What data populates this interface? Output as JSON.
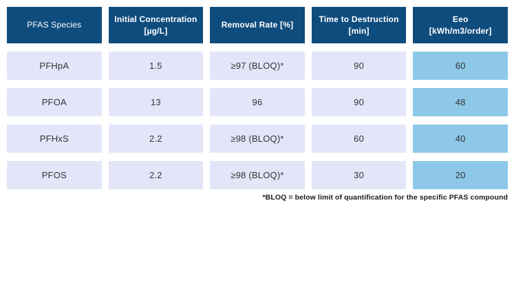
{
  "table": {
    "headers": [
      {
        "line1": "PFAS Species",
        "line2": ""
      },
      {
        "line1": "Initial Concentration",
        "line2": "[µg/L]"
      },
      {
        "line1": "Removal Rate [%]",
        "line2": ""
      },
      {
        "line1": "Time to Destruction",
        "line2": "[min]"
      },
      {
        "line1": "Eeo",
        "line2": "[kWh/m3/order]"
      }
    ],
    "rows": [
      {
        "species": "PFHpA",
        "initial_concentration": "1.5",
        "removal_rate": "≥97 (BLOQ)*",
        "time_to_destruction": "90",
        "eeo": "60"
      },
      {
        "species": "PFOA",
        "initial_concentration": "13",
        "removal_rate": "96",
        "time_to_destruction": "90",
        "eeo": "48"
      },
      {
        "species": "PFHxS",
        "initial_concentration": "2.2",
        "removal_rate": "≥98 (BLOQ)*",
        "time_to_destruction": "60",
        "eeo": "40"
      },
      {
        "species": "PFOS",
        "initial_concentration": "2.2",
        "removal_rate": "≥98 (BLOQ)*",
        "time_to_destruction": "30",
        "eeo": "20"
      }
    ],
    "footnote": "*BLOQ = below limit of quantification for the specific PFAS compound"
  },
  "colors": {
    "header_bg": "#0F4C7E",
    "header_text": "#FFFFFF",
    "cell_bg": "#E3E6F8",
    "eeo_cell_bg": "#8DC8E8",
    "cell_text": "#333333",
    "page_bg": "#FFFFFF"
  },
  "chart_data": {
    "type": "table",
    "title": "",
    "columns": [
      "PFAS Species",
      "Initial Concentration [µg/L]",
      "Removal Rate [%]",
      "Time to Destruction [min]",
      "Eeo [kWh/m3/order]"
    ],
    "rows": [
      [
        "PFHpA",
        1.5,
        "≥97 (BLOQ)*",
        90,
        60
      ],
      [
        "PFOA",
        13,
        "96",
        90,
        48
      ],
      [
        "PFHxS",
        2.2,
        "≥98 (BLOQ)*",
        60,
        40
      ],
      [
        "PFOS",
        2.2,
        "≥98 (BLOQ)*",
        30,
        20
      ]
    ],
    "footnote": "*BLOQ = below limit of quantification for the specific PFAS compound",
    "layout_hints": {
      "highlighted_column": "Eeo [kWh/m3/order]",
      "highlight_color": "#8DC8E8"
    }
  }
}
